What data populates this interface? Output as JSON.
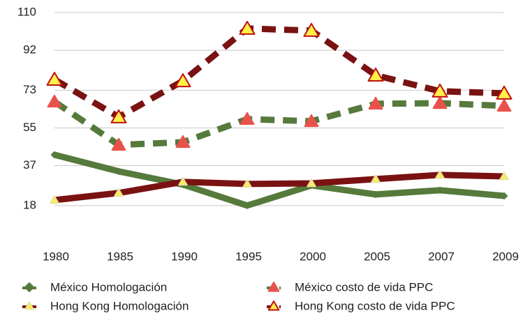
{
  "chart_data": {
    "type": "line",
    "categories": [
      "1980",
      "1985",
      "1990",
      "1995",
      "2000",
      "2005",
      "2007",
      "2009"
    ],
    "ylim": [
      0,
      110
    ],
    "yticks": [
      18,
      37,
      55,
      73,
      92,
      110
    ],
    "grid": true,
    "series": [
      {
        "name": "México Homologación",
        "color": "#557a3c",
        "dash": false,
        "marker": "diamond",
        "marker_color": "#557a3c",
        "marker_stroke": "#557a3c",
        "marker_size": 8,
        "values": [
          42.2,
          34.3,
          28.0,
          18.0,
          27.6,
          23.3,
          25.3,
          22.6
        ]
      },
      {
        "name": "México costo de vida PPC",
        "color": "#557a3c",
        "dash": true,
        "marker": "triangle",
        "marker_color": "#e8524a",
        "marker_stroke": "#e8524a",
        "marker_size": 18,
        "values": [
          67.5,
          46.9,
          48.2,
          59.2,
          58.2,
          66.5,
          66.8,
          65.5
        ]
      },
      {
        "name": "Hong Kong Homologación",
        "color": "#7a1212",
        "dash": false,
        "marker": "triangle",
        "marker_color": "#fff04a",
        "marker_stroke": "#e8e0a0",
        "marker_size": 11,
        "values": [
          20.6,
          24.0,
          29.3,
          28.3,
          28.6,
          30.6,
          32.6,
          31.9
        ]
      },
      {
        "name": "Hong Kong costo de vida PPC",
        "color": "#7a1212",
        "dash": true,
        "marker": "triangle",
        "marker_color": "#fff04a",
        "marker_stroke": "#c01010",
        "marker_size": 20,
        "values": [
          78.1,
          60.2,
          77.4,
          102.4,
          101.4,
          80.1,
          72.5,
          71.5
        ]
      }
    ]
  }
}
